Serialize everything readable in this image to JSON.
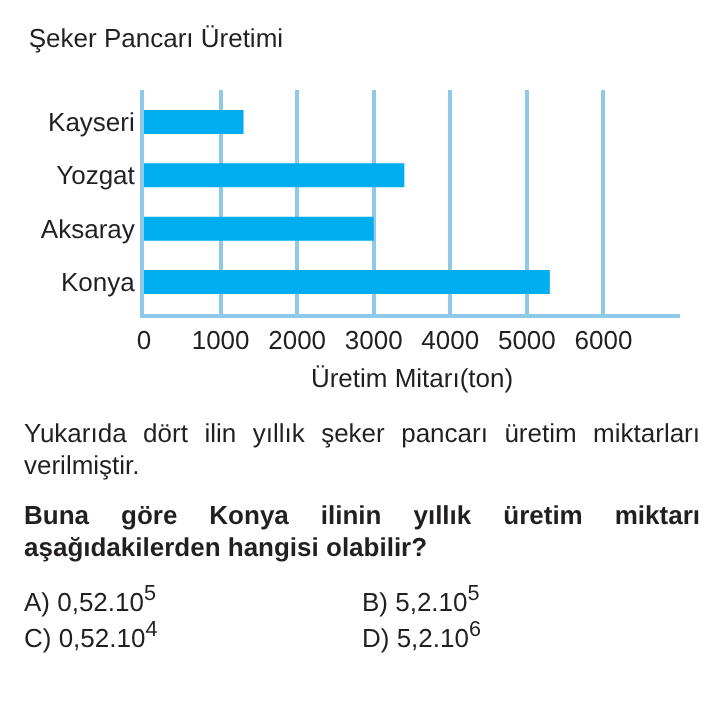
{
  "chart_data": {
    "type": "bar",
    "orientation": "horizontal",
    "title": "Şeker Pancarı Üretimi",
    "xlabel": "Üretim Mitarı(ton)",
    "categories": [
      "Kayseri",
      "Yozgat",
      "Aksaray",
      "Konya"
    ],
    "values": [
      1300,
      3400,
      3000,
      5300
    ],
    "color": "#00aeef",
    "xlim": [
      0,
      7000
    ],
    "xticks": [
      0,
      1000,
      2000,
      3000,
      4000,
      5000,
      6000
    ],
    "grid": "x",
    "annotations": [
      "Yukarıda dört ilin yıllık şeker pancarı üretim miktarları verilmiştir.",
      "Buna göre Konya ilinin yıllık üretim miktarı aşağıdakilerden hangisi olabilir?",
      "A) 0,52.10$^{5}$",
      "B) 5,2.10$^{5}$",
      "C) 0,52.10$^{4}$",
      "D) 5,2.10$^{6}$"
    ]
  }
}
